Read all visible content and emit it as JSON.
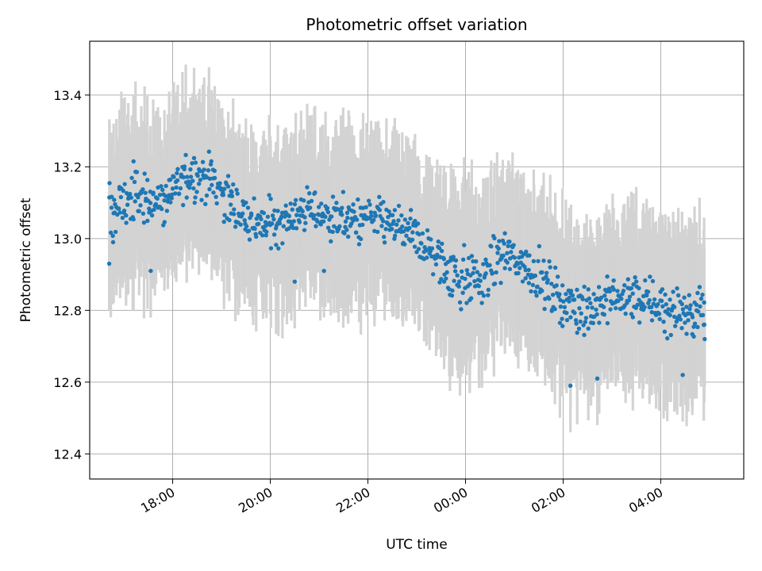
{
  "chart_data": {
    "type": "scatter",
    "title": "Photometric offset variation",
    "xlabel": "UTC time",
    "ylabel": "Photometric offset",
    "x_unit": "hours",
    "xlim": [
      16.3,
      29.7
    ],
    "ylim": [
      12.33,
      13.55
    ],
    "x_ticks": [
      {
        "value": 18,
        "label": "18:00"
      },
      {
        "value": 20,
        "label": "20:00"
      },
      {
        "value": 22,
        "label": "22:00"
      },
      {
        "value": 24,
        "label": "00:00"
      },
      {
        "value": 26,
        "label": "02:00"
      },
      {
        "value": 28,
        "label": "04:00"
      }
    ],
    "y_ticks": [
      {
        "value": 12.4,
        "label": "12.4"
      },
      {
        "value": 12.6,
        "label": "12.6"
      },
      {
        "value": 12.8,
        "label": "12.8"
      },
      {
        "value": 13.0,
        "label": "13.0"
      },
      {
        "value": 13.2,
        "label": "13.2"
      },
      {
        "value": 13.4,
        "label": "13.4"
      }
    ],
    "grid": true,
    "colors": {
      "points": "#1f77b4",
      "errorbars": "#d3d3d3",
      "grid": "#b0b0b0"
    },
    "trend": [
      [
        16.7,
        13.07,
        0.11
      ],
      [
        17.2,
        13.12,
        0.1
      ],
      [
        17.8,
        13.1,
        0.09
      ],
      [
        18.3,
        13.18,
        0.09
      ],
      [
        18.8,
        13.17,
        0.09
      ],
      [
        19.3,
        13.08,
        0.09
      ],
      [
        19.8,
        13.03,
        0.09
      ],
      [
        20.3,
        13.06,
        0.08
      ],
      [
        20.8,
        13.08,
        0.08
      ],
      [
        21.3,
        13.06,
        0.08
      ],
      [
        21.8,
        13.05,
        0.08
      ],
      [
        22.3,
        13.05,
        0.08
      ],
      [
        22.8,
        13.02,
        0.08
      ],
      [
        23.3,
        12.96,
        0.09
      ],
      [
        23.8,
        12.9,
        0.11
      ],
      [
        24.3,
        12.88,
        0.1
      ],
      [
        24.8,
        12.96,
        0.08
      ],
      [
        25.3,
        12.92,
        0.07
      ],
      [
        25.8,
        12.85,
        0.09
      ],
      [
        26.3,
        12.8,
        0.1
      ],
      [
        26.8,
        12.82,
        0.08
      ],
      [
        27.3,
        12.84,
        0.08
      ],
      [
        27.8,
        12.82,
        0.09
      ],
      [
        28.3,
        12.8,
        0.09
      ],
      [
        28.8,
        12.8,
        0.09
      ]
    ],
    "n_points": 900,
    "x_range": [
      16.7,
      28.9
    ],
    "highlight_points": [
      [
        16.7,
        12.93
      ],
      [
        16.78,
        12.99
      ],
      [
        17.55,
        12.91
      ],
      [
        19.2,
        13.07
      ],
      [
        20.5,
        12.88
      ],
      [
        21.1,
        12.91
      ],
      [
        26.15,
        12.59
      ],
      [
        26.7,
        12.61
      ],
      [
        28.45,
        12.62
      ],
      [
        28.9,
        12.72
      ]
    ]
  }
}
